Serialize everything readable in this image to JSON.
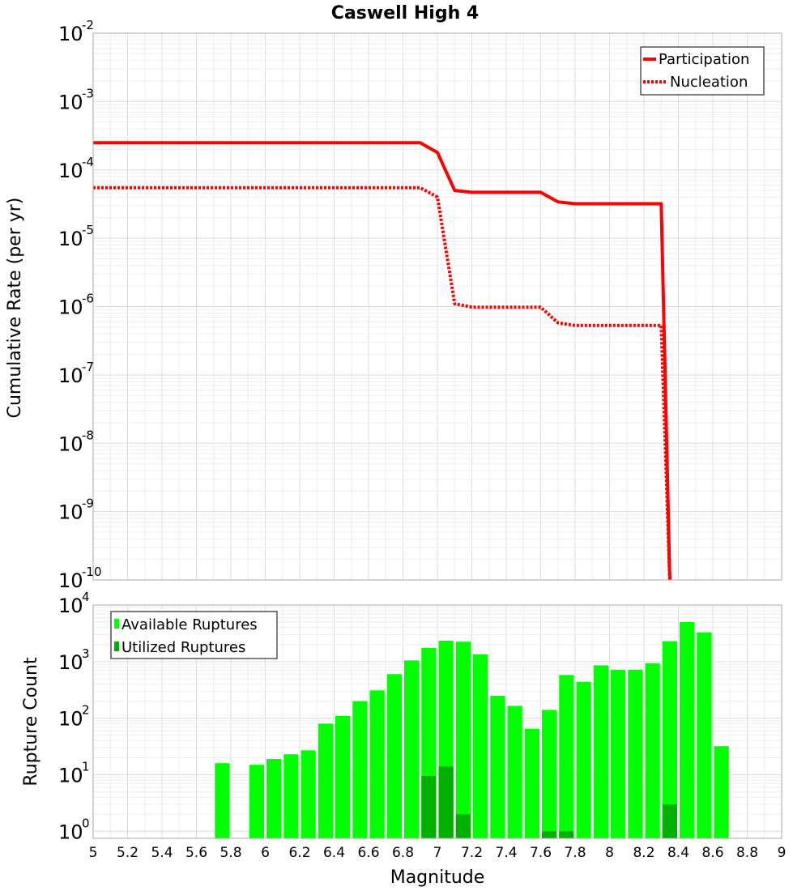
{
  "colors": {
    "participation": "#ff0000",
    "nucleation": "#ff0000",
    "available": "#00ff00",
    "utilized": "#00b000"
  },
  "chart_data": [
    {
      "type": "line",
      "title": "Caswell High 4",
      "xlabel": "Magnitude",
      "ylabel": "Cumulative Rate (per yr)",
      "xlim": [
        5,
        9
      ],
      "ylim": [
        1e-10,
        0.01
      ],
      "yscale": "log",
      "ytick_base": "10",
      "ytick_exponents": [
        "-10",
        "-9",
        "-8",
        "-7",
        "-6",
        "-5",
        "-4",
        "-3",
        "-2"
      ],
      "legend": {
        "position": "top-right",
        "entries": [
          "Participation",
          "Nucleation"
        ]
      },
      "series": [
        {
          "name": "Participation",
          "style": "solid",
          "x": [
            5.0,
            6.9,
            7.0,
            7.1,
            7.2,
            7.6,
            7.7,
            7.8,
            8.3,
            8.35
          ],
          "y": [
            0.00025,
            0.00025,
            0.00018,
            5e-05,
            4.7e-05,
            4.7e-05,
            3.4e-05,
            3.2e-05,
            3.2e-05,
            1e-10
          ]
        },
        {
          "name": "Nucleation",
          "style": "dotted",
          "x": [
            5.0,
            6.9,
            7.0,
            7.1,
            7.2,
            7.6,
            7.7,
            7.8,
            8.3,
            8.35
          ],
          "y": [
            5.5e-05,
            5.5e-05,
            4e-05,
            1.1e-06,
            9.8e-07,
            9.8e-07,
            5.8e-07,
            5.3e-07,
            5.3e-07,
            1e-10
          ]
        }
      ]
    },
    {
      "type": "bar",
      "xlabel": "Magnitude",
      "ylabel": "Rupture Count",
      "xlim": [
        5,
        9
      ],
      "ylim": [
        0.75,
        10000
      ],
      "yscale": "log",
      "ytick_base": "10",
      "ytick_exponents": [
        "0",
        "1",
        "2",
        "3",
        "4"
      ],
      "xticks": [
        "5",
        "5.2",
        "5.4",
        "5.6",
        "5.8",
        "6",
        "6.2",
        "6.4",
        "6.6",
        "6.8",
        "7",
        "7.2",
        "7.4",
        "7.6",
        "7.8",
        "8",
        "8.2",
        "8.4",
        "8.6",
        "8.8",
        "9"
      ],
      "legend": {
        "position": "top-left",
        "entries": [
          "Available Ruptures",
          "Utilized Ruptures"
        ]
      },
      "bin_width": 0.1,
      "series": [
        {
          "name": "Available Ruptures",
          "x": [
            5.75,
            5.95,
            6.05,
            6.15,
            6.25,
            6.35,
            6.45,
            6.55,
            6.65,
            6.75,
            6.85,
            6.95,
            7.05,
            7.15,
            7.25,
            7.35,
            7.45,
            7.55,
            7.65,
            7.75,
            7.85,
            7.95,
            8.05,
            8.15,
            8.25,
            8.35,
            8.45,
            8.55,
            8.65
          ],
          "values": [
            16,
            15,
            19,
            23,
            27,
            80,
            110,
            200,
            310,
            600,
            1050,
            1750,
            2350,
            2250,
            1350,
            250,
            165,
            65,
            140,
            580,
            440,
            860,
            720,
            720,
            940,
            2300,
            5000,
            3300,
            32
          ]
        },
        {
          "name": "Utilized Ruptures",
          "x": [
            6.95,
            7.05,
            7.15,
            7.65,
            7.75,
            8.35
          ],
          "values": [
            9.5,
            14,
            2,
            1,
            1,
            3
          ]
        }
      ]
    }
  ]
}
